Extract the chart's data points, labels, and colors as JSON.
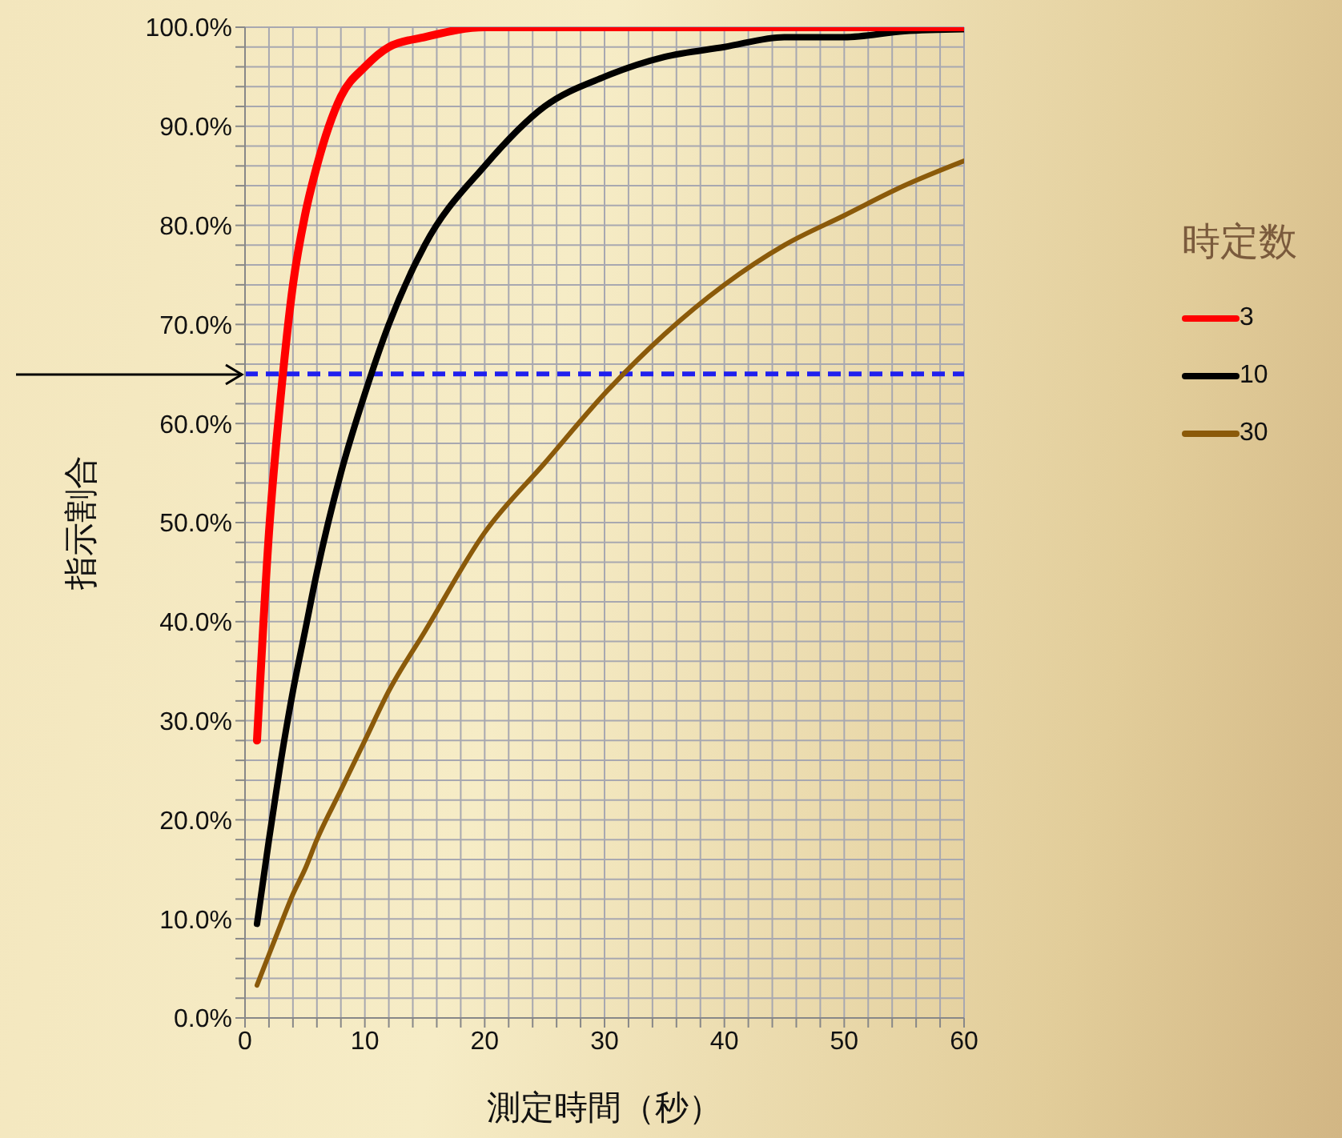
{
  "chart_data": {
    "type": "line",
    "xlabel": "測定時間（秒）",
    "ylabel": "指示割合",
    "legend_title": "時定数",
    "legend": "right",
    "grid": true,
    "line_style": "solid",
    "xlim": [
      0,
      60
    ],
    "ylim": [
      0,
      100
    ],
    "xticks": [
      0,
      {
        "value": 2,
        "label": null
      },
      {
        "value": 4,
        "label": null
      },
      {
        "value": 6,
        "label": null
      },
      {
        "value": 8,
        "label": null
      },
      10,
      {
        "value": 12,
        "label": null
      },
      {
        "value": 14,
        "label": null
      },
      {
        "value": 16,
        "label": null
      },
      {
        "value": 18,
        "label": null
      },
      20,
      {
        "value": 22,
        "label": null
      },
      {
        "value": 24,
        "label": null
      },
      {
        "value": 26,
        "label": null
      },
      {
        "value": 28,
        "label": null
      },
      30,
      {
        "value": 32,
        "label": null
      },
      {
        "value": 34,
        "label": null
      },
      {
        "value": 36,
        "label": null
      },
      {
        "value": 38,
        "label": null
      },
      40,
      {
        "value": 42,
        "label": null
      },
      {
        "value": 44,
        "label": null
      },
      {
        "value": 46,
        "label": null
      },
      {
        "value": 48,
        "label": null
      },
      50,
      {
        "value": 52,
        "label": null
      },
      {
        "value": 54,
        "label": null
      },
      {
        "value": 56,
        "label": null
      },
      {
        "value": 58,
        "label": null
      },
      60
    ],
    "yticks": [
      {
        "value": 0,
        "label": "0.0%"
      },
      {
        "value": 2,
        "label": null
      },
      {
        "value": 4,
        "label": null
      },
      {
        "value": 6,
        "label": null
      },
      {
        "value": 8,
        "label": null
      },
      {
        "value": 10,
        "label": "10.0%"
      },
      {
        "value": 12,
        "label": null
      },
      {
        "value": 14,
        "label": null
      },
      {
        "value": 16,
        "label": null
      },
      {
        "value": 18,
        "label": null
      },
      {
        "value": 20,
        "label": "20.0%"
      },
      {
        "value": 22,
        "label": null
      },
      {
        "value": 24,
        "label": null
      },
      {
        "value": 26,
        "label": null
      },
      {
        "value": 28,
        "label": null
      },
      {
        "value": 30,
        "label": "30.0%"
      },
      {
        "value": 32,
        "label": null
      },
      {
        "value": 34,
        "label": null
      },
      {
        "value": 36,
        "label": null
      },
      {
        "value": 38,
        "label": null
      },
      {
        "value": 40,
        "label": "40.0%"
      },
      {
        "value": 42,
        "label": null
      },
      {
        "value": 44,
        "label": null
      },
      {
        "value": 46,
        "label": null
      },
      {
        "value": 48,
        "label": null
      },
      {
        "value": 50,
        "label": "50.0%"
      },
      {
        "value": 52,
        "label": null
      },
      {
        "value": 54,
        "label": null
      },
      {
        "value": 56,
        "label": null
      },
      {
        "value": 58,
        "label": null
      },
      {
        "value": 60,
        "label": "60.0%"
      },
      {
        "value": 62,
        "label": null
      },
      {
        "value": 64,
        "label": null
      },
      {
        "value": 66,
        "label": null
      },
      {
        "value": 68,
        "label": null
      },
      {
        "value": 70,
        "label": "70.0%"
      },
      {
        "value": 72,
        "label": null
      },
      {
        "value": 74,
        "label": null
      },
      {
        "value": 76,
        "label": null
      },
      {
        "value": 78,
        "label": null
      },
      {
        "value": 80,
        "label": "80.0%"
      },
      {
        "value": 82,
        "label": null
      },
      {
        "value": 84,
        "label": null
      },
      {
        "value": 86,
        "label": null
      },
      {
        "value": 88,
        "label": null
      },
      {
        "value": 90,
        "label": "90.0%"
      },
      {
        "value": 92,
        "label": null
      },
      {
        "value": 94,
        "label": null
      },
      {
        "value": 96,
        "label": null
      },
      {
        "value": 98,
        "label": null
      },
      {
        "value": 100,
        "label": "100.0%"
      }
    ],
    "x": [
      1,
      2,
      3,
      4,
      5,
      6,
      8,
      10,
      12,
      15,
      20,
      25,
      30,
      35,
      40,
      45,
      50,
      55,
      60
    ],
    "series": [
      {
        "name": "3",
        "color": "#ff0000",
        "values": [
          28,
          49,
          63,
          74,
          81,
          86,
          93,
          96,
          98,
          99,
          100,
          100,
          100,
          100,
          100,
          100,
          100,
          100,
          100
        ]
      },
      {
        "name": "10",
        "color": "#000000",
        "values": [
          9.5,
          18,
          26,
          33,
          39,
          45,
          55,
          63,
          70,
          78,
          86,
          92,
          95,
          97,
          98,
          99,
          99,
          99.6,
          99.8
        ]
      },
      {
        "name": "30",
        "color": "#8b5a0a",
        "values": [
          3.3,
          6.4,
          9.5,
          12.5,
          15,
          18,
          23,
          28,
          33,
          39,
          49,
          56,
          63,
          69,
          74,
          78,
          81,
          84,
          86.5
        ]
      }
    ],
    "ref_lines": [
      {
        "axis": "y",
        "value": 65,
        "color": "#2020ee",
        "line_style": "dashed"
      }
    ]
  }
}
